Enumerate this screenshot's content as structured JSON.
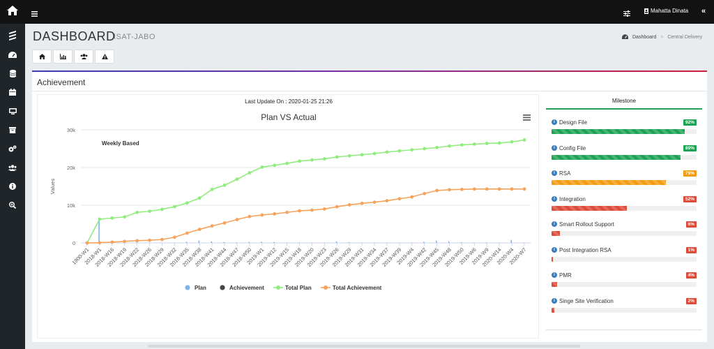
{
  "colors": {
    "topbar": "#121212",
    "sidebar": "#1f2529",
    "plan": "#7cb5ec",
    "achievement": "#434348",
    "total_plan": "#90ed7d",
    "total_achievement": "#f7a35c",
    "green": "#1ea355",
    "orange": "#f39c12",
    "red": "#dd4b39"
  },
  "topbar": {
    "home_icon": "home-icon",
    "menu_icon": "hamburger-icon",
    "settings_icon": "sliders-icon",
    "user_name": "Mahatta Dinata",
    "collapse_label": "«"
  },
  "sidebar": {
    "items": [
      {
        "icon": "ericsson-logo-icon"
      },
      {
        "icon": "speedometer-icon"
      },
      {
        "icon": "database-icon"
      },
      {
        "icon": "calendar-icon"
      },
      {
        "icon": "monitor-icon"
      },
      {
        "icon": "archive-icon"
      },
      {
        "icon": "cogs-icon"
      },
      {
        "icon": "users-icon"
      },
      {
        "icon": "info-icon"
      },
      {
        "icon": "search-plus-icon"
      }
    ]
  },
  "header": {
    "title": "DASHBOARD",
    "subtitle": "ISAT-JABO",
    "breadcrumb": [
      {
        "label": "Dashboard"
      },
      {
        "label": "Central Delivery"
      }
    ]
  },
  "tabs": [
    {
      "icon": "home-icon"
    },
    {
      "icon": "bar-chart-icon"
    },
    {
      "icon": "users-icon"
    },
    {
      "icon": "warning-icon"
    }
  ],
  "card": {
    "title": "Achievement",
    "last_update": "Last Update On : 2020-01-25 21:26"
  },
  "chart_data": {
    "type": "line",
    "title": "Plan VS Actual",
    "subtitle": "Weekly Based",
    "ylabel": "Values",
    "ylim": [
      0,
      30000
    ],
    "yticks": [
      "0",
      "10k",
      "20k",
      "30k"
    ],
    "x_tick_labels": [
      "1900-W1",
      "2018-W1",
      "2018-W16",
      "2018-W19",
      "2018-W22",
      "2018-W26",
      "2018-W29",
      "2018-W32",
      "2018-W35",
      "2018-W38",
      "2018-W41",
      "2018-W44",
      "2018-W47",
      "2018-W50",
      "2019-W1",
      "2019-W12",
      "2019-W15",
      "2019-W18",
      "2019-W20",
      "2019-W23",
      "2019-W26",
      "2019-W29",
      "2019-W31",
      "2019-W34",
      "2019-W37",
      "2019-W39",
      "2019-W4",
      "2019-W42",
      "2019-W45",
      "2019-W48",
      "2019-W50",
      "2019-W6",
      "2019-W9",
      "2020-W14",
      "2020-W4",
      "2020-W7"
    ],
    "series": [
      {
        "name": "Plan",
        "type": "column",
        "values": [
          0,
          6300,
          200,
          100,
          80,
          50,
          60,
          40,
          300,
          600,
          400,
          200,
          150,
          250,
          300,
          200,
          100,
          150,
          80,
          60,
          400,
          200,
          100,
          80,
          60,
          50,
          80,
          300,
          600,
          400,
          200,
          100,
          150,
          100,
          800,
          100
        ]
      },
      {
        "name": "Achievement",
        "type": "column",
        "values": [
          0,
          0,
          0,
          0,
          0,
          0,
          0,
          0,
          0,
          0,
          0,
          0,
          0,
          0,
          0,
          0,
          0,
          0,
          0,
          0,
          0,
          0,
          0,
          0,
          0,
          0,
          0,
          0,
          0,
          0,
          0,
          0,
          0,
          0,
          0,
          0
        ]
      },
      {
        "name": "Total Plan",
        "type": "line",
        "values": [
          0,
          6300,
          6600,
          6900,
          8100,
          8400,
          8900,
          9600,
          10600,
          11900,
          14200,
          15300,
          16900,
          18600,
          20100,
          20600,
          21100,
          21700,
          22000,
          22300,
          22800,
          23100,
          23400,
          23700,
          24100,
          24400,
          24700,
          25000,
          25300,
          25700,
          26000,
          26200,
          26400,
          26500,
          26800,
          27300
        ]
      },
      {
        "name": "Total Achievement",
        "type": "line",
        "values": [
          0,
          50,
          200,
          400,
          600,
          700,
          900,
          1500,
          2600,
          3600,
          4500,
          5300,
          6200,
          7000,
          7400,
          7700,
          8100,
          8500,
          8700,
          9000,
          9600,
          10100,
          10500,
          10800,
          11200,
          11700,
          12200,
          13100,
          13900,
          14100,
          14200,
          14300,
          14300,
          14300,
          14300,
          14300
        ]
      }
    ],
    "legend_position": "bottom-center",
    "menu_icon": "chart-menu-icon"
  },
  "milestone": {
    "title": "Milestone",
    "items": [
      {
        "label": "Design File",
        "percent": 92,
        "badge": "92%",
        "status": "green"
      },
      {
        "label": "Config File",
        "percent": 89,
        "badge": "89%",
        "status": "green"
      },
      {
        "label": "RSA",
        "percent": 79,
        "badge": "79%",
        "status": "orange"
      },
      {
        "label": "Integration",
        "percent": 52,
        "badge": "52%",
        "status": "red"
      },
      {
        "label": "Smart Rollout Support",
        "percent": 6,
        "badge": "6%",
        "status": "red"
      },
      {
        "label": "Post Integration RSA",
        "percent": 1,
        "badge": "1%",
        "status": "red"
      },
      {
        "label": "PMR",
        "percent": 4,
        "badge": "4%",
        "status": "red"
      },
      {
        "label": "Singe Site Verification",
        "percent": 2,
        "badge": "2%",
        "status": "red"
      }
    ]
  }
}
